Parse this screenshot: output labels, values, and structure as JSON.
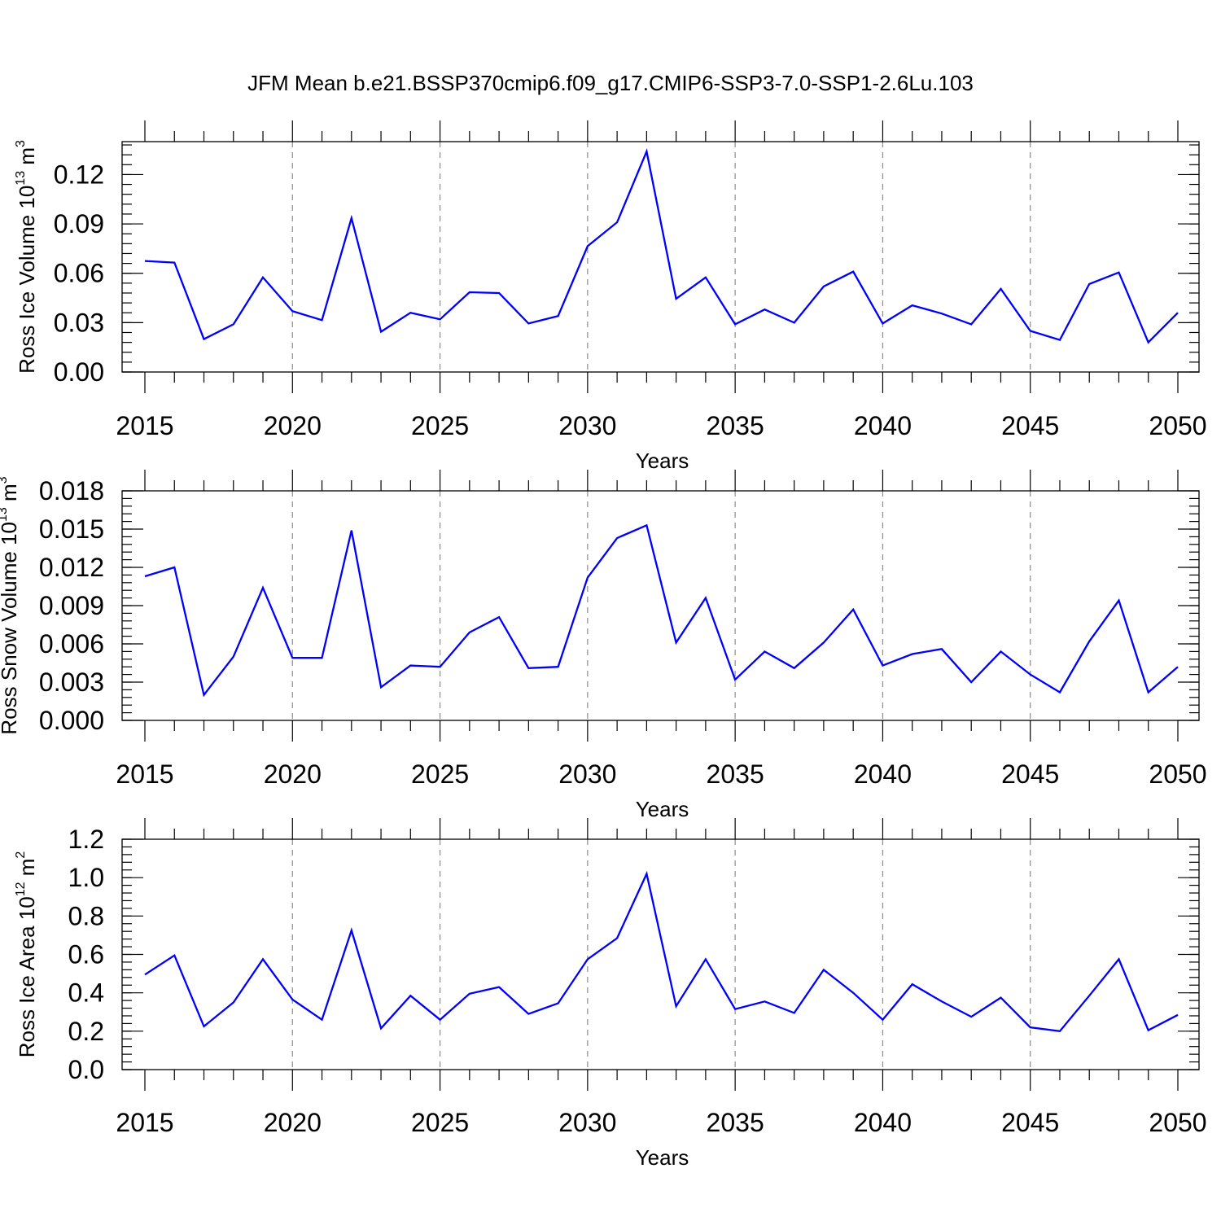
{
  "title": "JFM Mean b.e21.BSSP370cmip6.f09_g17.CMIP6-SSP3-7.0-SSP1-2.6Lu.103",
  "chart_data": [
    {
      "type": "line",
      "name": "ice-volume",
      "ylabel": {
        "text": "Ross Ice Volume 10",
        "exp": "13",
        "unit": " m",
        "unit_exp": "3"
      },
      "xlabel": "Years",
      "xlim": [
        2015,
        2050
      ],
      "ylim": [
        0,
        0.14
      ],
      "yticks": [
        0,
        0.03,
        0.06,
        0.09,
        0.12
      ],
      "ytick_labels": [
        "0.00",
        "0.03",
        "0.06",
        "0.09",
        "0.12"
      ],
      "yminor_step": 0.006,
      "xticks": [
        2015,
        2020,
        2025,
        2030,
        2035,
        2040,
        2045,
        2050
      ],
      "xtick_labels": [
        "2015",
        "2020",
        "2025",
        "2030",
        "2035",
        "2040",
        "2045",
        "2050"
      ],
      "grid_x": [
        2020,
        2025,
        2030,
        2035,
        2040,
        2045
      ],
      "color": "#0000ff",
      "x": [
        2015,
        2016,
        2017,
        2018,
        2019,
        2020,
        2021,
        2022,
        2023,
        2024,
        2025,
        2026,
        2027,
        2028,
        2029,
        2030,
        2031,
        2032,
        2033,
        2034,
        2035,
        2036,
        2037,
        2038,
        2039,
        2040,
        2041,
        2042,
        2043,
        2044,
        2045,
        2046,
        2047,
        2048,
        2049,
        2050
      ],
      "values": [
        0.0675,
        0.0665,
        0.02,
        0.029,
        0.0575,
        0.037,
        0.0315,
        0.0935,
        0.0245,
        0.036,
        0.032,
        0.0485,
        0.048,
        0.0295,
        0.034,
        0.0765,
        0.091,
        0.134,
        0.0445,
        0.0575,
        0.029,
        0.038,
        0.03,
        0.052,
        0.061,
        0.0295,
        0.0405,
        0.0355,
        0.029,
        0.0505,
        0.025,
        0.0195,
        0.0535,
        0.0605,
        0.018,
        0.036
      ]
    },
    {
      "type": "line",
      "name": "snow-volume",
      "ylabel": {
        "text": "Ross Snow Volume 10",
        "exp": "13",
        "unit": " m",
        "unit_exp": "3"
      },
      "xlabel": "Years",
      "xlim": [
        2015,
        2050
      ],
      "ylim": [
        0,
        0.018
      ],
      "yticks": [
        0,
        0.003,
        0.006,
        0.009,
        0.012,
        0.015,
        0.018
      ],
      "ytick_labels": [
        "0.000",
        "0.003",
        "0.006",
        "0.009",
        "0.012",
        "0.015",
        "0.018"
      ],
      "yminor_step": 0.0006,
      "xticks": [
        2015,
        2020,
        2025,
        2030,
        2035,
        2040,
        2045,
        2050
      ],
      "xtick_labels": [
        "2015",
        "2020",
        "2025",
        "2030",
        "2035",
        "2040",
        "2045",
        "2050"
      ],
      "grid_x": [
        2020,
        2025,
        2030,
        2035,
        2040,
        2045
      ],
      "color": "#0000ff",
      "x": [
        2015,
        2016,
        2017,
        2018,
        2019,
        2020,
        2021,
        2022,
        2023,
        2024,
        2025,
        2026,
        2027,
        2028,
        2029,
        2030,
        2031,
        2032,
        2033,
        2034,
        2035,
        2036,
        2037,
        2038,
        2039,
        2040,
        2041,
        2042,
        2043,
        2044,
        2045,
        2046,
        2047,
        2048,
        2049,
        2050
      ],
      "values": [
        0.0113,
        0.012,
        0.002,
        0.005,
        0.0104,
        0.0049,
        0.0049,
        0.0149,
        0.0026,
        0.0043,
        0.0042,
        0.0069,
        0.0081,
        0.0041,
        0.0042,
        0.0112,
        0.0143,
        0.0153,
        0.0061,
        0.0096,
        0.0032,
        0.0054,
        0.0041,
        0.0061,
        0.0087,
        0.0043,
        0.0052,
        0.0056,
        0.003,
        0.0054,
        0.0036,
        0.0022,
        0.0062,
        0.0094,
        0.0022,
        0.0042
      ]
    },
    {
      "type": "line",
      "name": "ice-area",
      "ylabel": {
        "text": "Ross Ice Area 10",
        "exp": "12",
        "unit": " m",
        "unit_exp": "2"
      },
      "xlabel": "Years",
      "xlim": [
        2015,
        2050
      ],
      "ylim": [
        0,
        1.2
      ],
      "yticks": [
        0,
        0.2,
        0.4,
        0.6,
        0.8,
        1.0,
        1.2
      ],
      "ytick_labels": [
        "0.0",
        "0.2",
        "0.4",
        "0.6",
        "0.8",
        "1.0",
        "1.2"
      ],
      "yminor_step": 0.04,
      "xticks": [
        2015,
        2020,
        2025,
        2030,
        2035,
        2040,
        2045,
        2050
      ],
      "xtick_labels": [
        "2015",
        "2020",
        "2025",
        "2030",
        "2035",
        "2040",
        "2045",
        "2050"
      ],
      "grid_x": [
        2020,
        2025,
        2030,
        2035,
        2040,
        2045
      ],
      "color": "#0000ff",
      "x": [
        2015,
        2016,
        2017,
        2018,
        2019,
        2020,
        2021,
        2022,
        2023,
        2024,
        2025,
        2026,
        2027,
        2028,
        2029,
        2030,
        2031,
        2032,
        2033,
        2034,
        2035,
        2036,
        2037,
        2038,
        2039,
        2040,
        2041,
        2042,
        2043,
        2044,
        2045,
        2046,
        2047,
        2048,
        2049,
        2050
      ],
      "values": [
        0.495,
        0.595,
        0.225,
        0.35,
        0.575,
        0.365,
        0.26,
        0.725,
        0.215,
        0.385,
        0.26,
        0.395,
        0.43,
        0.29,
        0.345,
        0.575,
        0.685,
        1.02,
        0.33,
        0.575,
        0.315,
        0.355,
        0.295,
        0.52,
        0.4,
        0.26,
        0.445,
        0.355,
        0.275,
        0.375,
        0.22,
        0.2,
        0.385,
        0.575,
        0.205,
        0.285
      ]
    }
  ]
}
